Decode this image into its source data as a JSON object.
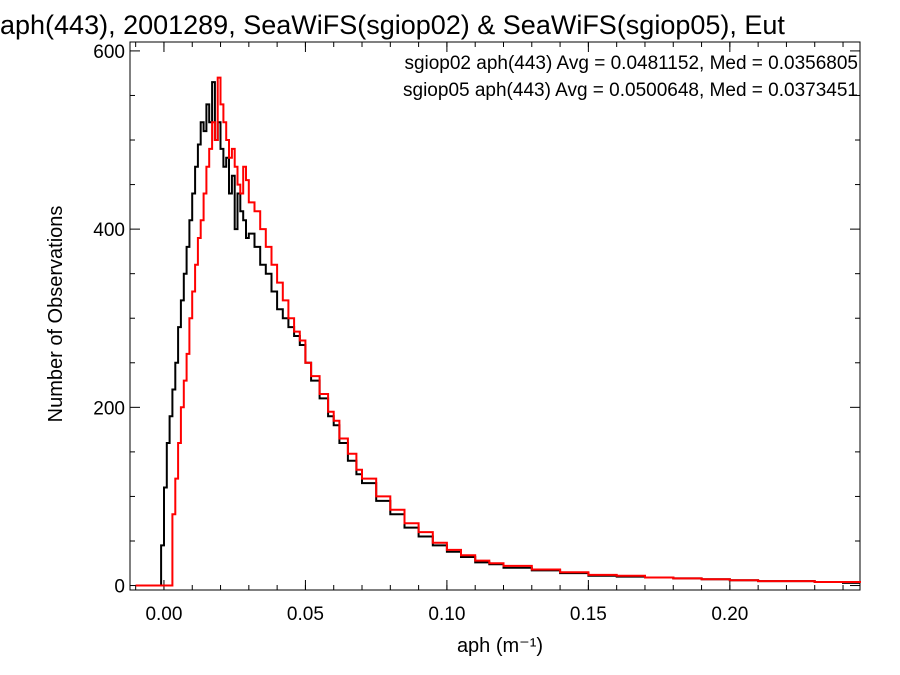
{
  "chart_data": {
    "type": "line",
    "title": "aph(443), 2001289, SeaWiFS(sgiop02) & SeaWiFS(sgiop05), Eut",
    "xlabel": "aph (m⁻¹)",
    "ylabel": "Number of Observations",
    "xlim": [
      -0.012,
      0.246
    ],
    "ylim": [
      -5,
      610
    ],
    "x_ticks": [
      0.0,
      0.05,
      0.1,
      0.15,
      0.2
    ],
    "x_tick_labels": [
      "0.00",
      "0.05",
      "0.10",
      "0.15",
      "0.20"
    ],
    "y_ticks": [
      0,
      200,
      400,
      600
    ],
    "y_tick_labels": [
      "0",
      "200",
      "400",
      "600"
    ],
    "grid": false,
    "legend_position": "top-right",
    "annotations": [
      {
        "text": "sgiop02 aph(443) Avg = 0.0481152, Med = 0.0356805",
        "color": "#000000"
      },
      {
        "text": "sgiop05 aph(443) Avg = 0.0500648, Med = 0.0373451",
        "color": "#ff0000"
      }
    ],
    "series": [
      {
        "color": "#000000",
        "x": [
          -0.01,
          -0.002,
          -0.001,
          0.0,
          0.001,
          0.002,
          0.003,
          0.004,
          0.005,
          0.006,
          0.007,
          0.008,
          0.009,
          0.01,
          0.011,
          0.012,
          0.013,
          0.014,
          0.015,
          0.016,
          0.017,
          0.018,
          0.019,
          0.02,
          0.021,
          0.022,
          0.023,
          0.024,
          0.025,
          0.026,
          0.027,
          0.028,
          0.029,
          0.03,
          0.032,
          0.034,
          0.036,
          0.038,
          0.04,
          0.042,
          0.044,
          0.046,
          0.048,
          0.05,
          0.052,
          0.055,
          0.058,
          0.06,
          0.062,
          0.065,
          0.068,
          0.07,
          0.075,
          0.08,
          0.085,
          0.09,
          0.095,
          0.1,
          0.105,
          0.11,
          0.115,
          0.12,
          0.13,
          0.14,
          0.15,
          0.16,
          0.17,
          0.18,
          0.19,
          0.2,
          0.21,
          0.22,
          0.23,
          0.24,
          0.246
        ],
        "y": [
          0,
          0,
          45,
          110,
          160,
          190,
          220,
          250,
          290,
          320,
          350,
          380,
          410,
          440,
          470,
          495,
          520,
          510,
          540,
          520,
          565,
          500,
          520,
          490,
          470,
          480,
          440,
          460,
          400,
          440,
          420,
          410,
          390,
          395,
          380,
          360,
          350,
          330,
          310,
          300,
          290,
          280,
          270,
          250,
          230,
          210,
          190,
          180,
          160,
          140,
          125,
          115,
          95,
          80,
          65,
          55,
          45,
          38,
          32,
          26,
          24,
          20,
          17,
          14,
          11,
          10,
          9,
          8,
          7,
          6,
          5,
          5,
          4,
          3,
          3
        ]
      },
      {
        "color": "#ff0000",
        "x": [
          -0.01,
          0.002,
          0.003,
          0.004,
          0.005,
          0.006,
          0.007,
          0.008,
          0.009,
          0.01,
          0.011,
          0.012,
          0.013,
          0.014,
          0.015,
          0.016,
          0.017,
          0.018,
          0.019,
          0.02,
          0.021,
          0.022,
          0.023,
          0.024,
          0.025,
          0.026,
          0.027,
          0.028,
          0.029,
          0.03,
          0.032,
          0.034,
          0.036,
          0.038,
          0.04,
          0.042,
          0.044,
          0.046,
          0.048,
          0.05,
          0.052,
          0.055,
          0.058,
          0.06,
          0.062,
          0.065,
          0.068,
          0.07,
          0.075,
          0.08,
          0.085,
          0.09,
          0.095,
          0.1,
          0.105,
          0.11,
          0.115,
          0.12,
          0.13,
          0.14,
          0.15,
          0.16,
          0.17,
          0.18,
          0.19,
          0.2,
          0.21,
          0.22,
          0.23,
          0.24,
          0.246
        ],
        "y": [
          0,
          0,
          80,
          120,
          160,
          200,
          230,
          260,
          300,
          330,
          360,
          390,
          410,
          440,
          470,
          490,
          520,
          500,
          570,
          540,
          520,
          500,
          480,
          490,
          470,
          450,
          440,
          470,
          455,
          430,
          420,
          400,
          380,
          360,
          340,
          320,
          300,
          285,
          275,
          250,
          235,
          215,
          195,
          185,
          165,
          148,
          130,
          120,
          100,
          85,
          70,
          60,
          48,
          40,
          34,
          28,
          25,
          22,
          18,
          15,
          12,
          11,
          9,
          8,
          7,
          6,
          5,
          5,
          4,
          4,
          3
        ]
      }
    ]
  }
}
